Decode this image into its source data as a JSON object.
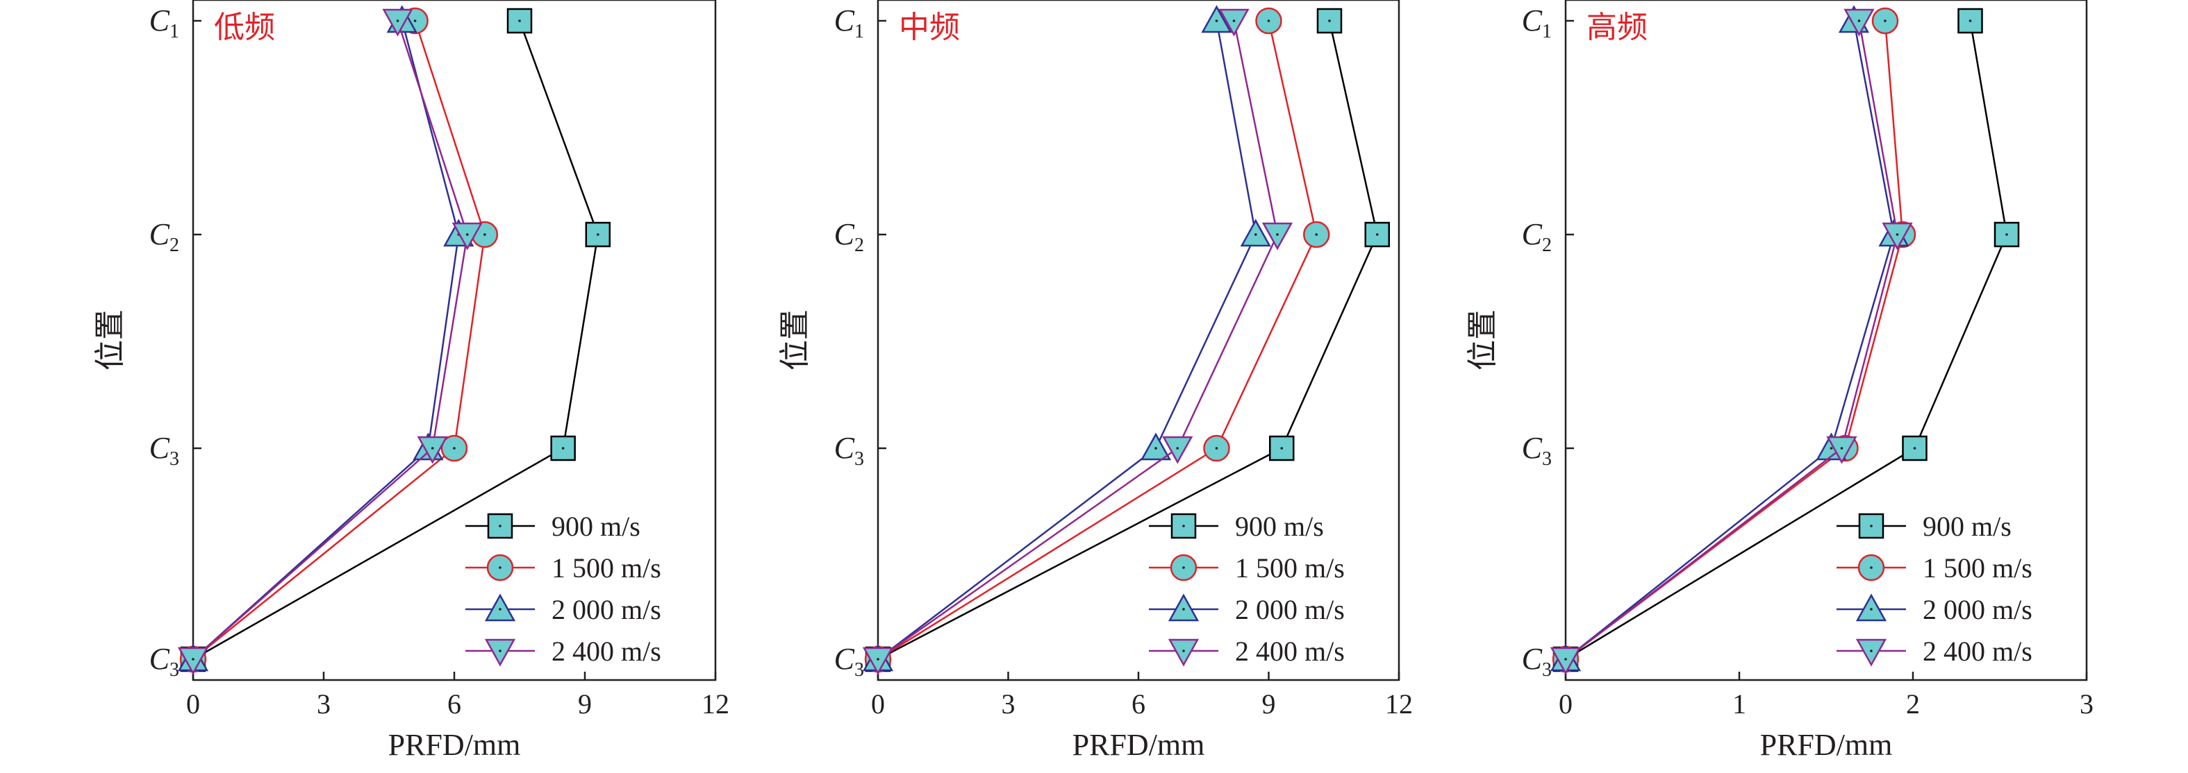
{
  "chart_data": [
    {
      "type": "line",
      "title": "低频",
      "xlabel": "PRFD/mm",
      "ylabel": "位置",
      "xlim": [
        0,
        12
      ],
      "xticks": [
        "0",
        "3",
        "6",
        "9",
        "12"
      ],
      "categories": [
        {
          "main": "C",
          "sub": "1"
        },
        {
          "main": "C",
          "sub": "2"
        },
        {
          "main": "C",
          "sub": "3"
        },
        {
          "main": "C",
          "sub": "3"
        }
      ],
      "series": [
        {
          "name": "900 m/s",
          "values": [
            7.5,
            9.3,
            8.5,
            0
          ],
          "color": "#000000",
          "marker": "square"
        },
        {
          "name": "1 500 m/s",
          "values": [
            5.1,
            6.7,
            6.0,
            0
          ],
          "color": "#e02228",
          "marker": "circle"
        },
        {
          "name": "2 000 m/s",
          "values": [
            4.8,
            6.1,
            5.4,
            0
          ],
          "color": "#2e3192",
          "marker": "triangle-up"
        },
        {
          "name": "2 400 m/s",
          "values": [
            4.7,
            6.3,
            5.5,
            0
          ],
          "color": "#92278f",
          "marker": "triangle-down"
        }
      ],
      "legend": "bottom-right"
    },
    {
      "type": "line",
      "title": "中频",
      "xlabel": "PRFD/mm",
      "ylabel": "位置",
      "xlim": [
        0,
        12
      ],
      "xticks": [
        "0",
        "3",
        "6",
        "9",
        "12"
      ],
      "categories": [
        {
          "main": "C",
          "sub": "1"
        },
        {
          "main": "C",
          "sub": "2"
        },
        {
          "main": "C",
          "sub": "3"
        },
        {
          "main": "C",
          "sub": "3"
        }
      ],
      "series": [
        {
          "name": "900 m/s",
          "values": [
            10.4,
            11.5,
            9.3,
            0
          ],
          "color": "#000000",
          "marker": "square"
        },
        {
          "name": "1 500 m/s",
          "values": [
            9.0,
            10.1,
            7.8,
            0
          ],
          "color": "#e02228",
          "marker": "circle"
        },
        {
          "name": "2 000 m/s",
          "values": [
            7.8,
            8.7,
            6.4,
            0
          ],
          "color": "#2e3192",
          "marker": "triangle-up"
        },
        {
          "name": "2 400 m/s",
          "values": [
            8.2,
            9.2,
            6.9,
            0
          ],
          "color": "#92278f",
          "marker": "triangle-down"
        }
      ],
      "legend": "bottom-right"
    },
    {
      "type": "line",
      "title": "高频",
      "xlabel": "PRFD/mm",
      "ylabel": "位置",
      "xlim": [
        0,
        3
      ],
      "xticks": [
        "0",
        "1",
        "2",
        "3"
      ],
      "categories": [
        {
          "main": "C",
          "sub": "1"
        },
        {
          "main": "C",
          "sub": "2"
        },
        {
          "main": "C",
          "sub": "3"
        },
        {
          "main": "C",
          "sub": "3"
        }
      ],
      "series": [
        {
          "name": "900 m/s",
          "values": [
            2.33,
            2.54,
            2.01,
            0
          ],
          "color": "#000000",
          "marker": "square"
        },
        {
          "name": "1 500 m/s",
          "values": [
            1.84,
            1.94,
            1.61,
            0
          ],
          "color": "#e02228",
          "marker": "circle"
        },
        {
          "name": "2 000 m/s",
          "values": [
            1.66,
            1.89,
            1.53,
            0
          ],
          "color": "#2e3192",
          "marker": "triangle-up"
        },
        {
          "name": "2 400 m/s",
          "values": [
            1.69,
            1.91,
            1.59,
            0
          ],
          "color": "#92278f",
          "marker": "triangle-down"
        }
      ],
      "legend": "bottom-right"
    }
  ],
  "marker_fill": "#6ecdcf"
}
